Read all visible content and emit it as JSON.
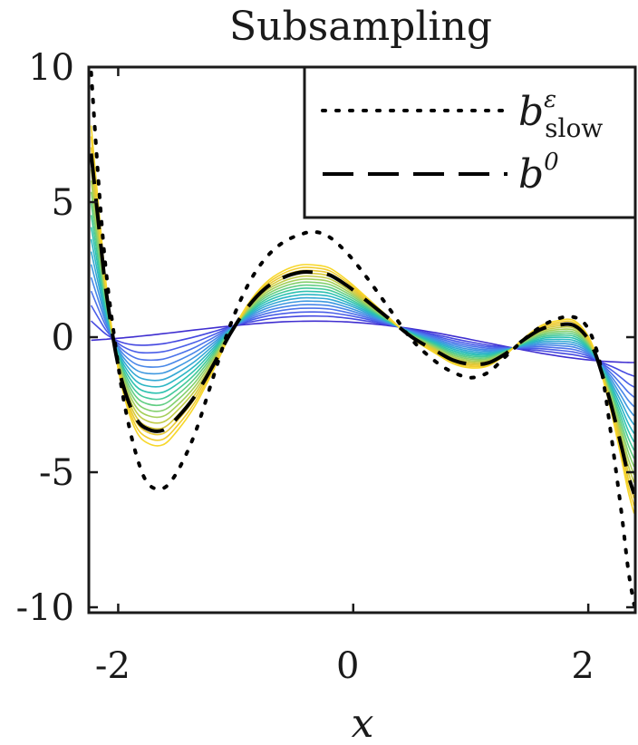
{
  "chart_data": {
    "type": "line",
    "title": "Subsampling",
    "xlabel": "x",
    "ylabel": "",
    "xlim": [
      -2.25,
      2.4
    ],
    "ylim": [
      -10.2,
      10
    ],
    "xticks": [
      -2,
      0,
      2
    ],
    "xtick_labels": [
      "-2",
      "0",
      "2"
    ],
    "yticks": [
      10,
      5,
      0,
      -5,
      -10
    ],
    "ytick_labels": [
      "10",
      "5",
      "0",
      "-5",
      "-10"
    ],
    "grid": false,
    "legend_position": "top-right",
    "legend": [
      {
        "name": "b_slow^ε",
        "base": "b",
        "sup": "ε",
        "sub": "slow",
        "style": "dotted",
        "color": "#000000"
      },
      {
        "name": "b^0",
        "base": "b",
        "sup": "0",
        "sub": "",
        "style": "dashed",
        "color": "#000000"
      }
    ],
    "series": [
      {
        "name": "b_slow^ε",
        "style": "dotted",
        "color": "#000000",
        "x": [
          -2.23,
          -2.16,
          -2.1,
          -2.02,
          -1.95,
          -1.85,
          -1.75,
          -1.62,
          -1.5,
          -1.35,
          -1.2,
          -1.05,
          -0.9,
          -0.75,
          -0.6,
          -0.45,
          -0.33,
          -0.2,
          -0.05,
          0.1,
          0.3,
          0.5,
          0.7,
          0.85,
          1.0,
          1.15,
          1.3,
          1.45,
          1.6,
          1.75,
          1.87,
          1.97,
          2.05,
          2.12,
          2.2,
          2.28,
          2.34,
          2.39
        ],
        "y": [
          9.8,
          5.3,
          2.3,
          -0.4,
          -2.4,
          -4.3,
          -5.4,
          -5.6,
          -5.0,
          -3.6,
          -1.6,
          0.4,
          1.9,
          2.9,
          3.5,
          3.8,
          3.9,
          3.7,
          3.1,
          2.3,
          1.1,
          -0.1,
          -0.9,
          -1.3,
          -1.5,
          -1.3,
          -0.7,
          -0.1,
          0.4,
          0.7,
          0.75,
          0.5,
          -0.2,
          -1.4,
          -3.8,
          -6.4,
          -8.6,
          -9.9
        ]
      },
      {
        "name": "b^0",
        "style": "dashed",
        "color": "#000000",
        "x": [
          -2.23,
          -2.16,
          -2.1,
          -2.02,
          -1.95,
          -1.85,
          -1.75,
          -1.62,
          -1.5,
          -1.35,
          -1.2,
          -1.05,
          -0.9,
          -0.75,
          -0.6,
          -0.45,
          -0.33,
          -0.2,
          -0.05,
          0.1,
          0.3,
          0.5,
          0.7,
          0.85,
          1.0,
          1.15,
          1.3,
          1.45,
          1.6,
          1.75,
          1.87,
          1.97,
          2.05,
          2.12,
          2.2,
          2.28,
          2.34,
          2.39
        ],
        "y": [
          6.8,
          3.9,
          1.6,
          -0.6,
          -1.9,
          -3.0,
          -3.4,
          -3.45,
          -3.0,
          -2.2,
          -1.1,
          0.1,
          1.1,
          1.8,
          2.2,
          2.4,
          2.4,
          2.3,
          1.9,
          1.4,
          0.7,
          0.0,
          -0.5,
          -0.85,
          -1.0,
          -0.95,
          -0.6,
          -0.1,
          0.3,
          0.45,
          0.45,
          0.1,
          -0.5,
          -1.4,
          -2.6,
          -4.0,
          -5.1,
          -5.8
        ]
      }
    ],
    "subsampling_family": {
      "count": 18,
      "colormap": "parula",
      "colors": [
        "#3f2ed0",
        "#4548e0",
        "#4a5ee8",
        "#4c73ea",
        "#4887e8",
        "#3e98e0",
        "#34a8d4",
        "#2cb6c4",
        "#2ec2b0",
        "#44c99a",
        "#62ce84",
        "#84d06e",
        "#a4cf5a",
        "#c2cc48",
        "#d8c93a",
        "#e8c832",
        "#f2cd30",
        "#f7d72a"
      ]
    }
  }
}
